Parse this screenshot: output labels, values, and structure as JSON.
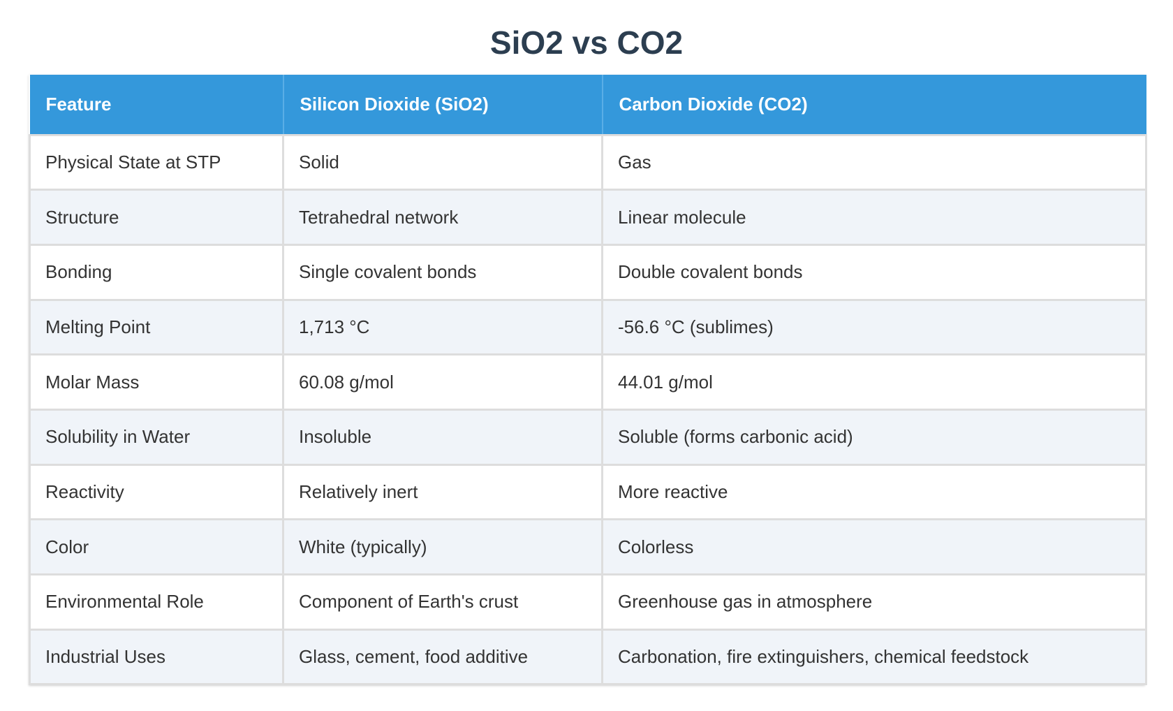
{
  "title": "SiO2 vs CO2",
  "colors": {
    "header_bg": "#3498db",
    "header_text": "#ffffff",
    "title_text": "#2c3e50",
    "row_alt_bg": "#f0f4f9",
    "border": "#dddddd"
  },
  "table": {
    "headers": [
      "Feature",
      "Silicon Dioxide (SiO2)",
      "Carbon Dioxide (CO2)"
    ],
    "rows": [
      [
        "Physical State at STP",
        "Solid",
        "Gas"
      ],
      [
        "Structure",
        "Tetrahedral network",
        "Linear molecule"
      ],
      [
        "Bonding",
        "Single covalent bonds",
        "Double covalent bonds"
      ],
      [
        "Melting Point",
        "1,713 °C",
        "-56.6 °C (sublimes)"
      ],
      [
        "Molar Mass",
        "60.08 g/mol",
        "44.01 g/mol"
      ],
      [
        "Solubility in Water",
        "Insoluble",
        "Soluble (forms carbonic acid)"
      ],
      [
        "Reactivity",
        "Relatively inert",
        "More reactive"
      ],
      [
        "Color",
        "White (typically)",
        "Colorless"
      ],
      [
        "Environmental Role",
        "Component of Earth's crust",
        "Greenhouse gas in atmosphere"
      ],
      [
        "Industrial Uses",
        "Glass, cement, food additive",
        "Carbonation, fire extinguishers, chemical feedstock"
      ]
    ]
  }
}
